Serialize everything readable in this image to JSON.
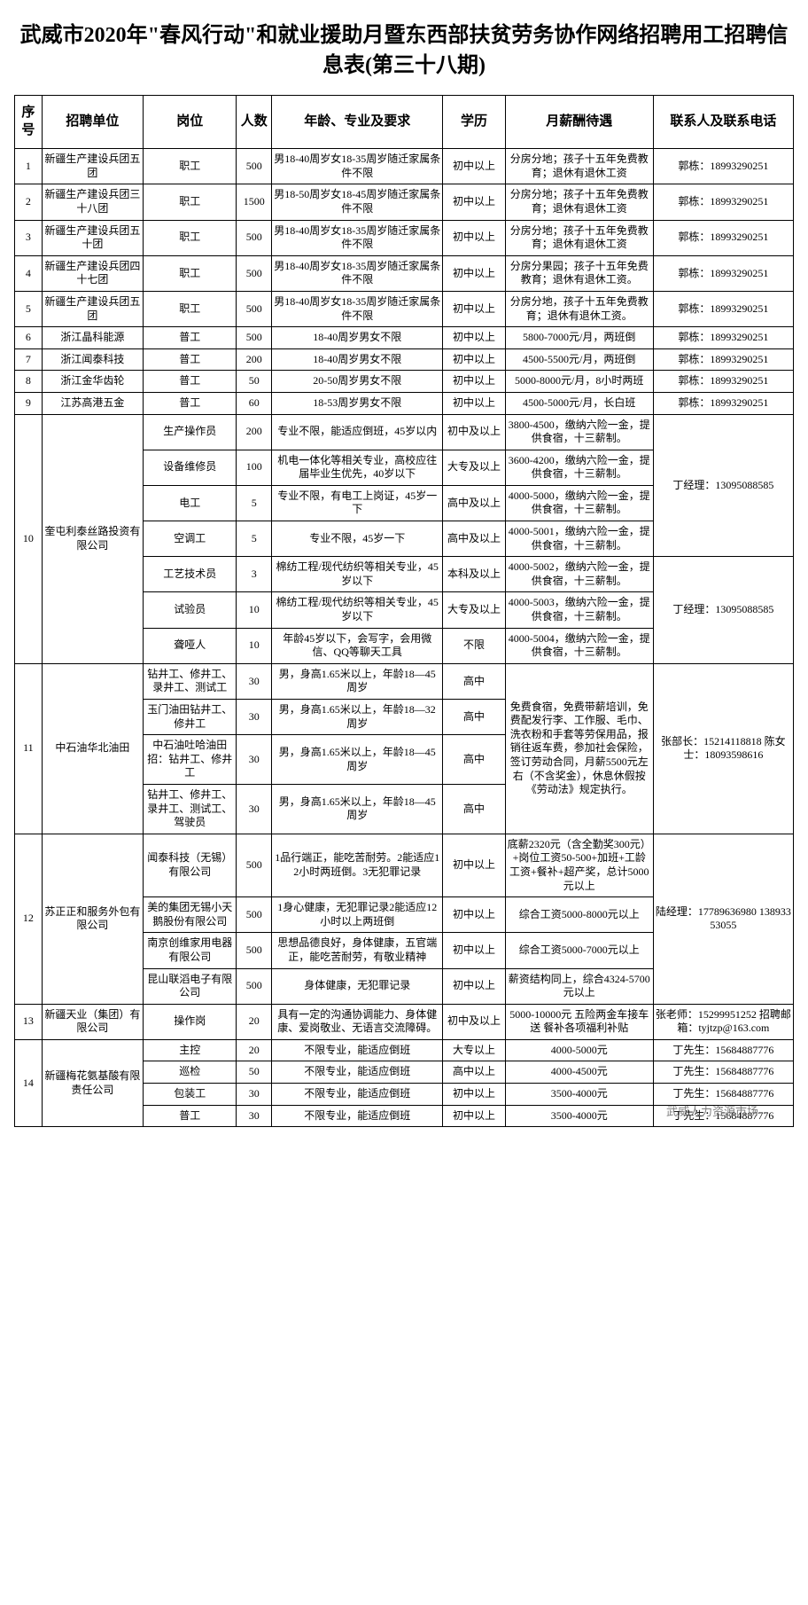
{
  "title": "武威市2020年\"春风行动\"和就业援助月暨东西部扶贫劳务协作网络招聘用工招聘信息表(第三十八期)",
  "headers": [
    "序号",
    "招聘单位",
    "岗位",
    "人数",
    "年龄、专业及要求",
    "学历",
    "月薪酬待遇",
    "联系人及联系电话"
  ],
  "footer_brand": "武威人力资源市场",
  "groups": [
    {
      "seq": "1",
      "unit": "新疆生产建设兵团五团",
      "contact": "郭栋：18993290251",
      "rows": [
        {
          "pos": "职工",
          "num": "500",
          "req": "男18-40周岁女18-35周岁随迁家属条件不限",
          "edu": "初中以上",
          "sal": "分房分地；孩子十五年免费教育；退休有退休工资"
        }
      ]
    },
    {
      "seq": "2",
      "unit": "新疆生产建设兵团三十八团",
      "contact": "郭栋：18993290251",
      "rows": [
        {
          "pos": "职工",
          "num": "1500",
          "req": "男18-50周岁女18-45周岁随迁家属条件不限",
          "edu": "初中以上",
          "sal": "分房分地；孩子十五年免费教育；退休有退休工资"
        }
      ]
    },
    {
      "seq": "3",
      "unit": "新疆生产建设兵团五十团",
      "contact": "郭栋：18993290251",
      "rows": [
        {
          "pos": "职工",
          "num": "500",
          "req": "男18-40周岁女18-35周岁随迁家属条件不限",
          "edu": "初中以上",
          "sal": "分房分地；孩子十五年免费教育；退休有退休工资"
        }
      ]
    },
    {
      "seq": "4",
      "unit": "新疆生产建设兵团四十七团",
      "contact": "郭栋：18993290251",
      "rows": [
        {
          "pos": "职工",
          "num": "500",
          "req": "男18-40周岁女18-35周岁随迁家属条件不限",
          "edu": "初中以上",
          "sal": "分房分果园；孩子十五年免费教育；退休有退休工资。"
        }
      ]
    },
    {
      "seq": "5",
      "unit": "新疆生产建设兵团五团",
      "contact": "郭栋：18993290251",
      "rows": [
        {
          "pos": "职工",
          "num": "500",
          "req": "男18-40周岁女18-35周岁随迁家属条件不限",
          "edu": "初中以上",
          "sal": "分房分地，孩子十五年免费教育；退休有退休工资。"
        }
      ]
    },
    {
      "seq": "6",
      "unit": "浙江晶科能源",
      "contact": "郭栋：18993290251",
      "rows": [
        {
          "pos": "普工",
          "num": "500",
          "req": "18-40周岁男女不限",
          "edu": "初中以上",
          "sal": "5800-7000元/月，两班倒"
        }
      ]
    },
    {
      "seq": "7",
      "unit": "浙江闻泰科技",
      "contact": "郭栋：18993290251",
      "rows": [
        {
          "pos": "普工",
          "num": "200",
          "req": "18-40周岁男女不限",
          "edu": "初中以上",
          "sal": "4500-5500元/月，两班倒"
        }
      ]
    },
    {
      "seq": "8",
      "unit": "浙江金华齿轮",
      "contact": "郭栋：18993290251",
      "rows": [
        {
          "pos": "普工",
          "num": "50",
          "req": "20-50周岁男女不限",
          "edu": "初中以上",
          "sal": "5000-8000元/月，8小时两班"
        }
      ]
    },
    {
      "seq": "9",
      "unit": "江苏高港五金",
      "contact": "郭栋：18993290251",
      "rows": [
        {
          "pos": "普工",
          "num": "60",
          "req": "18-53周岁男女不限",
          "edu": "初中以上",
          "sal": "4500-5000元/月，长白班"
        }
      ]
    },
    {
      "seq": "10",
      "unit": "奎屯利泰丝路投资有限公司",
      "contact_parts": [
        {
          "span": 4,
          "text": "丁经理：13095088585"
        },
        {
          "span": 3,
          "text": "丁经理：13095088585"
        }
      ],
      "rows": [
        {
          "pos": "生产操作员",
          "num": "200",
          "req": "专业不限，能适应倒班，45岁以内",
          "edu": "初中及以上",
          "sal": "3800-4500，缴纳六险一金，提供食宿，十三薪制。"
        },
        {
          "pos": "设备维修员",
          "num": "100",
          "req": "机电一体化等相关专业，高校应往届毕业生优先，40岁以下",
          "edu": "大专及以上",
          "sal": "3600-4200，缴纳六险一金，提供食宿，十三薪制。"
        },
        {
          "pos": "电工",
          "num": "5",
          "req": "专业不限，有电工上岗证，45岁一下",
          "edu": "高中及以上",
          "sal": "4000-5000，缴纳六险一金，提供食宿，十三薪制。"
        },
        {
          "pos": "空调工",
          "num": "5",
          "req": "专业不限，45岁一下",
          "edu": "高中及以上",
          "sal": "4000-5001，缴纳六险一金，提供食宿，十三薪制。"
        },
        {
          "pos": "工艺技术员",
          "num": "3",
          "req": "棉纺工程/现代纺织等相关专业，45岁以下",
          "edu": "本科及以上",
          "sal": "4000-5002，缴纳六险一金，提供食宿，十三薪制。"
        },
        {
          "pos": "试验员",
          "num": "10",
          "req": "棉纺工程/现代纺织等相关专业，45岁以下",
          "edu": "大专及以上",
          "sal": "4000-5003，缴纳六险一金，提供食宿，十三薪制。"
        },
        {
          "pos": "聋哑人",
          "num": "10",
          "req": "年龄45岁以下，会写字，会用微信、QQ等聊天工具",
          "edu": "不限",
          "sal": "4000-5004，缴纳六险一金，提供食宿，十三薪制。"
        }
      ]
    },
    {
      "seq": "11",
      "unit": "中石油华北油田",
      "contact": "张部长：15214118818 陈女士：18093598616",
      "rows": [
        {
          "pos": "钻井工、修井工、录井工、测试工",
          "num": "30",
          "req": "男，身高1.65米以上，年龄18—45周岁",
          "edu": "高中",
          "sal_span": 4,
          "sal": "免费食宿，免费带薪培训，免费配发行李、工作服、毛巾、洗衣粉和手套等劳保用品，报销往返车费，参加社会保险，签订劳动合同，月薪5500元左右（不含奖金），休息休假按《劳动法》规定执行。"
        },
        {
          "pos": "玉门油田钻井工、修井工",
          "num": "30",
          "req": "男，身高1.65米以上，年龄18—32周岁",
          "edu": "高中"
        },
        {
          "pos": "中石油吐哈油田招：钻井工、修井工",
          "num": "30",
          "req": "男，身高1.65米以上，年龄18—45周岁",
          "edu": "高中"
        },
        {
          "pos": "钻井工、修井工、录井工、测试工、驾驶员",
          "num": "30",
          "req": "男，身高1.65米以上，年龄18—45周岁",
          "edu": "高中"
        }
      ]
    },
    {
      "seq": "12",
      "unit": "苏正正和服务外包有限公司",
      "contact": "陆经理：17789636980 13893353055",
      "rows": [
        {
          "pos": "闻泰科技（无锡）有限公司",
          "num": "500",
          "req": "1品行端正，能吃苦耐劳。2能适应12小时两班倒。3无犯罪记录",
          "edu": "初中以上",
          "sal": "底薪2320元（含全勤奖300元）+岗位工资50-500+加班+工龄工资+餐补+超产奖，总计5000元以上"
        },
        {
          "pos": "美的集团无锡小天鹅股份有限公司",
          "num": "500",
          "req": "1身心健康，无犯罪记录2能适应12小时以上两班倒",
          "edu": "初中以上",
          "sal": "综合工资5000-8000元以上"
        },
        {
          "pos": "南京创维家用电器有限公司",
          "num": "500",
          "req": "思想品德良好，身体健康，五官端正，能吃苦耐劳，有敬业精神",
          "edu": "初中以上",
          "sal": "综合工资5000-7000元以上"
        },
        {
          "pos": "昆山联滔电子有限公司",
          "num": "500",
          "req": "身体健康，无犯罪记录",
          "edu": "初中以上",
          "sal": "薪资结构同上，综合4324-5700元以上"
        }
      ]
    },
    {
      "seq": "13",
      "unit": "新疆天业（集团）有限公司",
      "contact": "张老师：15299951252 招聘邮箱：tyjtzp@163.com",
      "rows": [
        {
          "pos": "操作岗",
          "num": "20",
          "req": "具有一定的沟通协调能力、身体健康、爱岗敬业、无语言交流障碍。",
          "edu": "初中及以上",
          "sal": "5000-10000元 五险两金车接车送 餐补各项福利补贴"
        }
      ]
    },
    {
      "seq": "14",
      "unit": "新疆梅花氨基酸有限责任公司",
      "contact_each": true,
      "rows": [
        {
          "pos": "主控",
          "num": "20",
          "req": "不限专业，能适应倒班",
          "edu": "大专以上",
          "sal": "4000-5000元",
          "contact": "丁先生：15684887776"
        },
        {
          "pos": "巡检",
          "num": "50",
          "req": "不限专业，能适应倒班",
          "edu": "高中以上",
          "sal": "4000-4500元",
          "contact": "丁先生：15684887776"
        },
        {
          "pos": "包装工",
          "num": "30",
          "req": "不限专业，能适应倒班",
          "edu": "初中以上",
          "sal": "3500-4000元",
          "contact": "丁先生：15684887776"
        },
        {
          "pos": "普工",
          "num": "30",
          "req": "不限专业，能适应倒班",
          "edu": "初中以上",
          "sal": "3500-4000元",
          "contact": "丁先生：15684887776"
        }
      ]
    }
  ]
}
